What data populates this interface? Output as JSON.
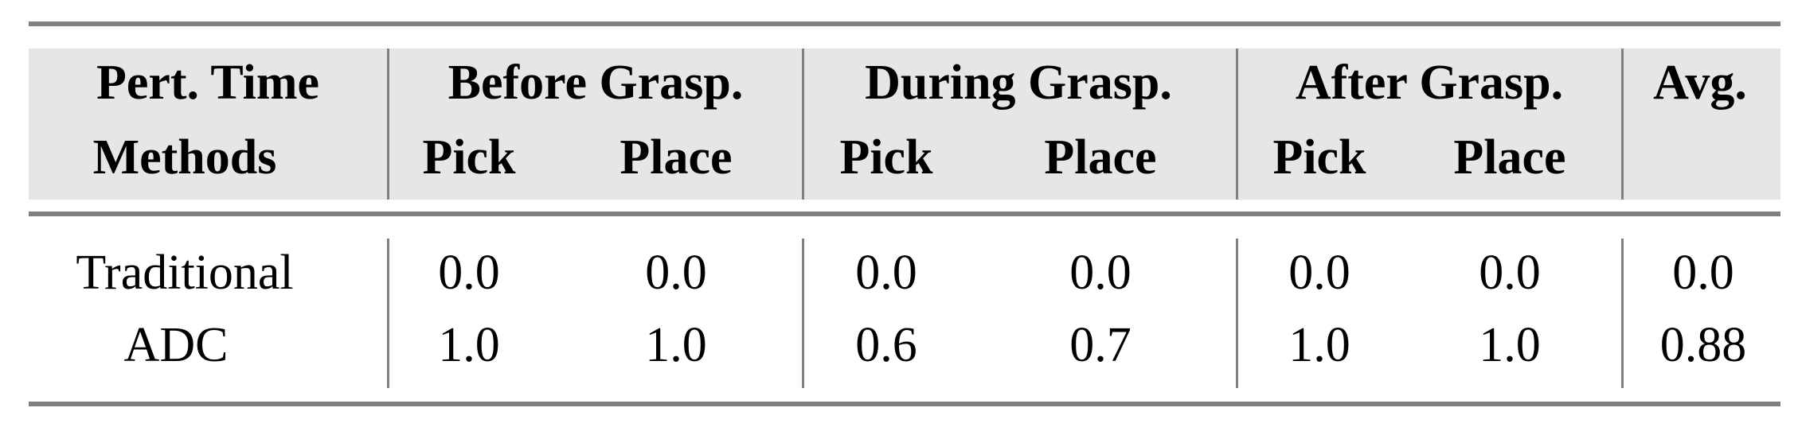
{
  "table": {
    "header_row1": [
      "Pert. Time",
      "Before Grasp.",
      "During Grasp.",
      "After Grasp.",
      "Avg."
    ],
    "header_row2": [
      "Methods",
      "Pick",
      "Place",
      "Pick",
      "Place",
      "Pick",
      "Place"
    ],
    "rows": [
      {
        "method": "Traditional",
        "values": [
          "0.0",
          "0.0",
          "0.0",
          "0.0",
          "0.0",
          "0.0",
          "0.0"
        ]
      },
      {
        "method": "ADC",
        "values": [
          "1.0",
          "1.0",
          "0.6",
          "0.7",
          "1.0",
          "1.0",
          "0.88"
        ]
      }
    ]
  },
  "colors": {
    "header_bg": "#e6e6e6",
    "rule": "#808080"
  }
}
